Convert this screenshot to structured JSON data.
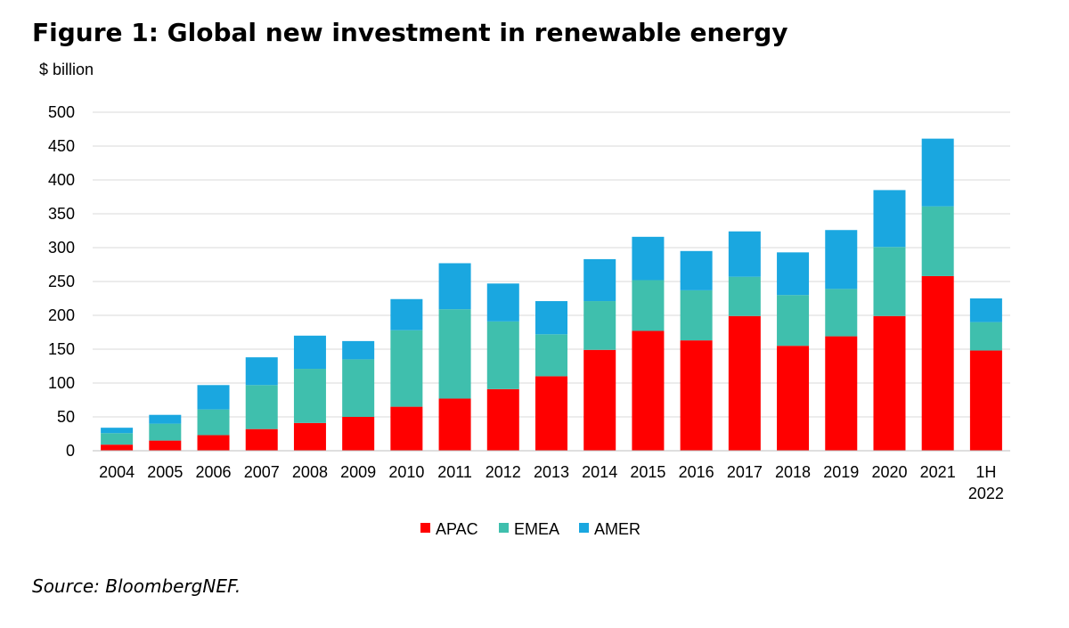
{
  "title": "Figure 1: Global new investment in renewable energy",
  "source": "Source: BloombergNEF.",
  "chart_data": {
    "type": "bar",
    "stacked": true,
    "title": "Figure 1: Global new investment in renewable energy",
    "ylabel": "$ billion",
    "xlabel": "",
    "ylim": [
      0,
      500
    ],
    "yticks": [
      0,
      50,
      100,
      150,
      200,
      250,
      300,
      350,
      400,
      450,
      500
    ],
    "grid": true,
    "legend_position": "bottom",
    "categories": [
      "2004",
      "2005",
      "2006",
      "2007",
      "2008",
      "2009",
      "2010",
      "2011",
      "2012",
      "2013",
      "2014",
      "2015",
      "2016",
      "2017",
      "2018",
      "2019",
      "2020",
      "2021",
      "1H\n2022"
    ],
    "series": [
      {
        "name": "APAC",
        "color": "#ff0000",
        "values": [
          9,
          15,
          23,
          32,
          41,
          50,
          65,
          77,
          91,
          110,
          149,
          177,
          163,
          199,
          155,
          169,
          199,
          258,
          148
        ]
      },
      {
        "name": "EMEA",
        "color": "#3fbfad",
        "values": [
          17,
          25,
          38,
          65,
          80,
          85,
          113,
          132,
          100,
          62,
          72,
          75,
          74,
          58,
          75,
          70,
          102,
          103,
          42
        ]
      },
      {
        "name": "AMER",
        "color": "#1aa7e0",
        "values": [
          8,
          13,
          36,
          41,
          49,
          27,
          46,
          68,
          56,
          49,
          62,
          64,
          58,
          67,
          63,
          87,
          84,
          100,
          35
        ]
      }
    ]
  }
}
